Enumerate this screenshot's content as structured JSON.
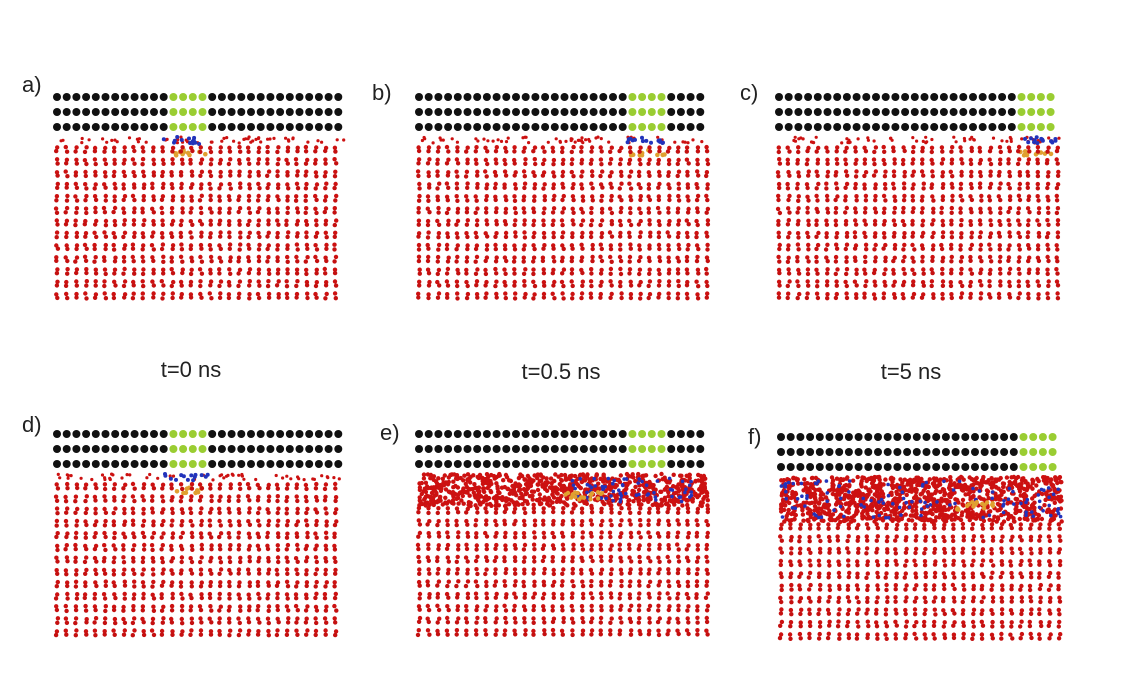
{
  "panels": [
    {
      "label": "a)"
    },
    {
      "label": "b)"
    },
    {
      "label": "c)"
    },
    {
      "label": "d)"
    },
    {
      "label": "e)"
    },
    {
      "label": "f)"
    }
  ],
  "captions": [
    "t=0 ns",
    "t=0.5 ns",
    "t=5 ns"
  ]
}
